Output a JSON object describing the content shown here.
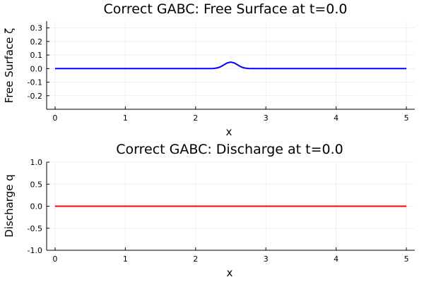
{
  "chart_data": [
    {
      "type": "line",
      "title": "Correct GABC: Free Surface at t=0.0",
      "xlabel": "x",
      "ylabel": "Free Surface ζ",
      "xlim": [
        -0.12,
        5.12
      ],
      "ylim": [
        -0.3,
        0.35
      ],
      "xticks": [
        0,
        1,
        2,
        3,
        4,
        5
      ],
      "yticks": [
        -0.2,
        -0.1,
        0.0,
        0.1,
        0.2,
        0.3
      ],
      "xtick_labels": [
        "0",
        "1",
        "2",
        "3",
        "4",
        "5"
      ],
      "ytick_labels": [
        "-0.2",
        "-0.1",
        "0.0",
        "0.1",
        "0.2",
        "0.3"
      ],
      "grid": true,
      "legend": "none",
      "series": [
        {
          "color": "#0000ff",
          "x": [
            0.0,
            2.0,
            2.1,
            2.2,
            2.25,
            2.3,
            2.35,
            2.4,
            2.45,
            2.5,
            2.55,
            2.6,
            2.65,
            2.7,
            2.75,
            2.8,
            2.9,
            3.0,
            5.0
          ],
          "y": [
            0.0,
            0.0,
            0.0,
            0.0,
            0.001,
            0.004,
            0.012,
            0.027,
            0.042,
            0.048,
            0.042,
            0.027,
            0.012,
            0.004,
            0.001,
            0.0,
            0.0,
            0.0,
            0.0
          ]
        }
      ]
    },
    {
      "type": "line",
      "title": "Correct GABC: Discharge at t=0.0",
      "xlabel": "x",
      "ylabel": "Discharge q",
      "xlim": [
        -0.12,
        5.12
      ],
      "ylim": [
        -1.0,
        1.0
      ],
      "xticks": [
        0,
        1,
        2,
        3,
        4,
        5
      ],
      "yticks": [
        -1.0,
        -0.5,
        0.0,
        0.5,
        1.0
      ],
      "xtick_labels": [
        "0",
        "1",
        "2",
        "3",
        "4",
        "5"
      ],
      "ytick_labels": [
        "-1.0",
        "-0.5",
        "0.0",
        "0.5",
        "1.0"
      ],
      "grid": true,
      "legend": "none",
      "series": [
        {
          "color": "#ff0000",
          "x": [
            0.0,
            5.0
          ],
          "y": [
            0.0,
            0.0
          ]
        }
      ]
    }
  ]
}
